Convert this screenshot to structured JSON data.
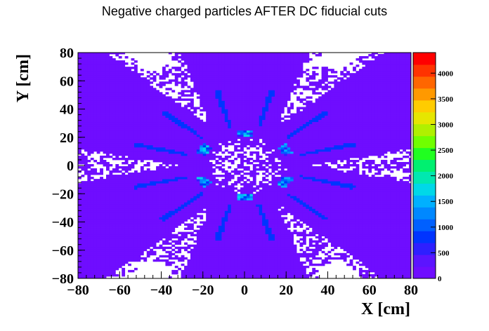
{
  "chart_data": {
    "type": "heatmap",
    "title": "Negative charged particles AFTER DC fiducial cuts",
    "xlabel": "X [cm]",
    "ylabel": "Y [cm]",
    "xlim": [
      -80,
      80
    ],
    "ylim": [
      -80,
      80
    ],
    "xticks": [
      "−80",
      "−60",
      "−40",
      "−20",
      "0",
      "20",
      "40",
      "60",
      "80"
    ],
    "yticks": [
      "80",
      "60",
      "40",
      "20",
      "0",
      "−20",
      "−40",
      "−60",
      "−80"
    ],
    "zlim": [
      0,
      4400
    ],
    "zticks": [
      "4000",
      "3500",
      "3000",
      "2500",
      "2000",
      "1500",
      "1000",
      "500",
      "0"
    ],
    "grid": false,
    "colorbar": "right",
    "palette": [
      "#6f0dff",
      "#5b14ff",
      "#2e1fff",
      "#0034ff",
      "#0060ff",
      "#0088ff",
      "#00b0ff",
      "#00d8e8",
      "#00e8b0",
      "#00f070",
      "#20ff20",
      "#70ff00",
      "#b0f000",
      "#e6e600",
      "#ffcc00",
      "#ff9900",
      "#ff6600",
      "#ff3300",
      "#ff0000"
    ],
    "sectors": [
      {
        "angle_deg": 90,
        "hot_edge_cm": 22
      },
      {
        "angle_deg": 30,
        "hot_edge_cm": 22
      },
      {
        "angle_deg": -30,
        "hot_edge_cm": 22
      },
      {
        "angle_deg": -90,
        "hot_edge_cm": 22
      },
      {
        "angle_deg": -150,
        "hot_edge_cm": 22
      },
      {
        "angle_deg": 150,
        "hot_edge_cm": 22
      }
    ],
    "peak_counts": 1800
  }
}
